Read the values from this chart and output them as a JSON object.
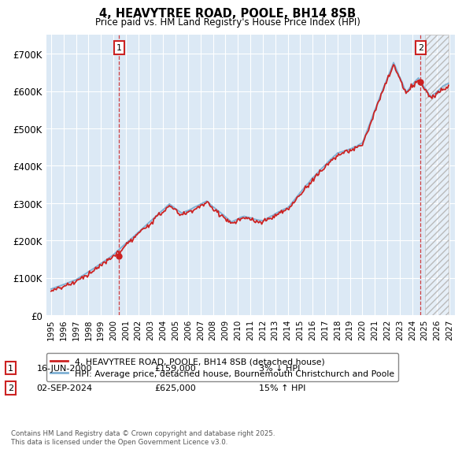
{
  "title": "4, HEAVYTREE ROAD, POOLE, BH14 8SB",
  "subtitle": "Price paid vs. HM Land Registry's House Price Index (HPI)",
  "background_color": "#ffffff",
  "plot_bg_color": "#dce9f5",
  "grid_color": "#ffffff",
  "hpi_color": "#7eb0d4",
  "price_color": "#cc2222",
  "legend_line1": "4, HEAVYTREE ROAD, POOLE, BH14 8SB (detached house)",
  "legend_line2": "HPI: Average price, detached house, Bournemouth Christchurch and Poole",
  "footer": "Contains HM Land Registry data © Crown copyright and database right 2025.\nThis data is licensed under the Open Government Licence v3.0.",
  "ylim_max": 750000,
  "yticks": [
    0,
    100000,
    200000,
    300000,
    400000,
    500000,
    600000,
    700000
  ],
  "ytick_labels": [
    "£0",
    "£100K",
    "£200K",
    "£300K",
    "£400K",
    "£500K",
    "£600K",
    "£700K"
  ],
  "sale1_date": 2000.46,
  "sale1_price": 159000,
  "sale2_date": 2024.67,
  "sale2_price": 625000,
  "forecast_start": 2025.0,
  "xlim_min": 1994.6,
  "xlim_max": 2027.4
}
